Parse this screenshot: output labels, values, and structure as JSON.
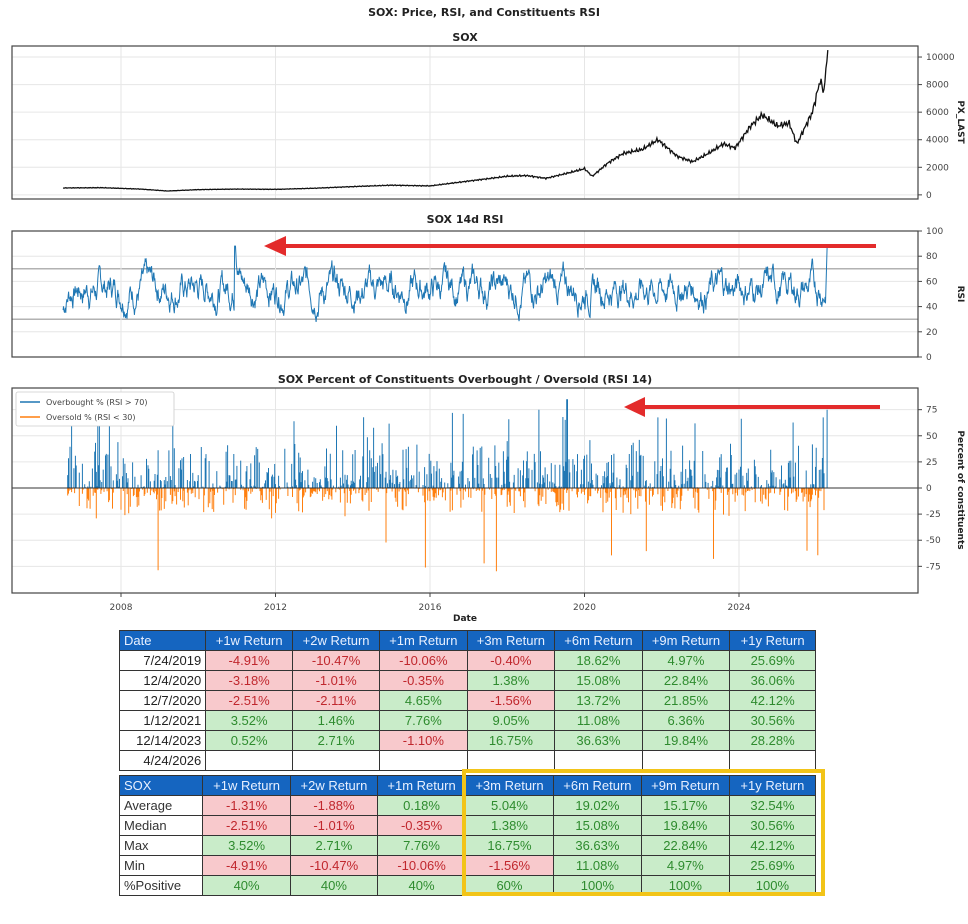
{
  "title": "SOX: Price, RSI, and Constituents RSI",
  "chart_data": [
    {
      "type": "line",
      "title": "SOX",
      "xlabel": "",
      "ylabel": "PX_LAST",
      "ylim": [
        0,
        10500
      ],
      "yticks": [
        0,
        2000,
        4000,
        6000,
        8000,
        10000
      ],
      "x": [
        2006.5,
        2007.5,
        2008.5,
        2009.2,
        2010,
        2011,
        2012,
        2013,
        2014,
        2015,
        2016,
        2017,
        2018,
        2018.5,
        2019,
        2019.6,
        2020,
        2020.2,
        2020.6,
        2021,
        2021.5,
        2021.9,
        2022.4,
        2022.8,
        2023.2,
        2023.6,
        2023.9,
        2024.3,
        2024.6,
        2025,
        2025.3,
        2025.5,
        2025.9,
        2026.1,
        2026.2,
        2026.3
      ],
      "values": [
        500,
        520,
        420,
        280,
        380,
        420,
        400,
        480,
        600,
        700,
        650,
        1000,
        1350,
        1400,
        1200,
        1600,
        1900,
        1350,
        2300,
        3000,
        3300,
        4000,
        2800,
        2400,
        3000,
        3700,
        3400,
        5000,
        5800,
        5000,
        5200,
        3700,
        6000,
        8300,
        7500,
        10500
      ]
    },
    {
      "type": "line",
      "title": "SOX 14d RSI",
      "ylabel": "RSI",
      "ylim": [
        0,
        100
      ],
      "yticks": [
        0,
        20,
        40,
        60,
        80,
        100
      ],
      "reference_lines": [
        30,
        70
      ],
      "annotation": "red arrow pointing left from latest RSI (~87) back to 2011 peak (~88)",
      "latest_value": 87
    },
    {
      "type": "bar",
      "title": "SOX Percent of Constituents Overbought / Oversold (RSI 14)",
      "xlabel": "Date",
      "ylabel": "Percent of constituents",
      "ylim": [
        -90,
        90
      ],
      "yticks": [
        -75,
        -50,
        -25,
        0,
        25,
        50,
        75
      ],
      "xticks": [
        "2008",
        "2012",
        "2016",
        "2020",
        "2024"
      ],
      "legend": [
        "Overbought % (RSI > 70)",
        "Oversold % (RSI < 30)"
      ],
      "legend_position": "upper left",
      "annotation": "red arrow pointing left from latest overbought (~75%) back to 2019 spike (~85%)",
      "latest_overbought": 75
    }
  ],
  "history_table": {
    "headers": [
      "Date",
      "+1w Return",
      "+2w Return",
      "+1m Return",
      "+3m Return",
      "+6m Return",
      "+9m Return",
      "+1y Return"
    ],
    "rows": [
      {
        "date": "7/24/2019",
        "values": [
          "-4.91%",
          "-10.47%",
          "-10.06%",
          "-0.40%",
          "18.62%",
          "4.97%",
          "25.69%"
        ]
      },
      {
        "date": "12/4/2020",
        "values": [
          "-3.18%",
          "-1.01%",
          "-0.35%",
          "1.38%",
          "15.08%",
          "22.84%",
          "36.06%"
        ]
      },
      {
        "date": "12/7/2020",
        "values": [
          "-2.51%",
          "-2.11%",
          "4.65%",
          "-1.56%",
          "13.72%",
          "21.85%",
          "42.12%"
        ]
      },
      {
        "date": "1/12/2021",
        "values": [
          "3.52%",
          "1.46%",
          "7.76%",
          "9.05%",
          "11.08%",
          "6.36%",
          "30.56%"
        ]
      },
      {
        "date": "12/14/2023",
        "values": [
          "0.52%",
          "2.71%",
          "-1.10%",
          "16.75%",
          "36.63%",
          "19.84%",
          "28.28%"
        ]
      },
      {
        "date": "4/24/2026",
        "values": [
          "",
          "",
          "",
          "",
          "",
          "",
          ""
        ]
      }
    ]
  },
  "summary_table": {
    "headers": [
      "SOX",
      "+1w Return",
      "+2w Return",
      "+1m Return",
      "+3m Return",
      "+6m Return",
      "+9m Return",
      "+1y Return"
    ],
    "rows": [
      {
        "label": "Average",
        "values": [
          "-1.31%",
          "-1.88%",
          "0.18%",
          "5.04%",
          "19.02%",
          "15.17%",
          "32.54%"
        ]
      },
      {
        "label": "Median",
        "values": [
          "-2.51%",
          "-1.01%",
          "-0.35%",
          "1.38%",
          "15.08%",
          "19.84%",
          "30.56%"
        ]
      },
      {
        "label": "Max",
        "values": [
          "3.52%",
          "2.71%",
          "7.76%",
          "16.75%",
          "36.63%",
          "22.84%",
          "42.12%"
        ]
      },
      {
        "label": "Min",
        "values": [
          "-4.91%",
          "-10.47%",
          "-10.06%",
          "-1.56%",
          "11.08%",
          "4.97%",
          "25.69%"
        ]
      },
      {
        "label": "%Positive",
        "values": [
          "40%",
          "40%",
          "40%",
          "60%",
          "100%",
          "100%",
          "100%"
        ]
      }
    ]
  },
  "colors": {
    "price_line": "#000000",
    "rsi_line": "#1f77b4",
    "overbought": "#1f77b4",
    "oversold": "#ff7f0e",
    "arrow": "#e32b2b",
    "header_bg": "#1565c0",
    "neg_bg": "#f8c9cc",
    "pos_bg": "#c9ecc9",
    "highlight": "#f2c418"
  }
}
